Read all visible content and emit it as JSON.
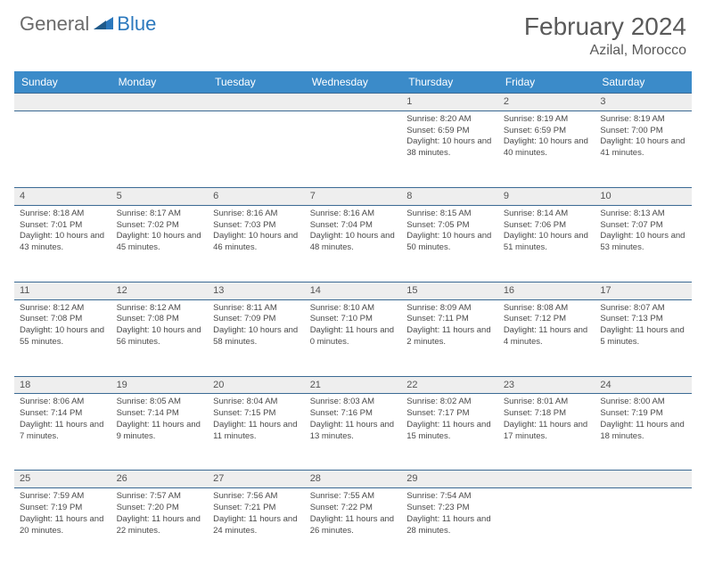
{
  "brand": {
    "part1": "General",
    "part2": "Blue"
  },
  "title": "February 2024",
  "location": "Azilal, Morocco",
  "header_bg": "#3b8bc9",
  "rule_color": "#3b6a94",
  "daynum_bg": "#eeeeee",
  "weekdays": [
    "Sunday",
    "Monday",
    "Tuesday",
    "Wednesday",
    "Thursday",
    "Friday",
    "Saturday"
  ],
  "weeks": [
    [
      null,
      null,
      null,
      null,
      {
        "n": "1",
        "sr": "8:20 AM",
        "ss": "6:59 PM",
        "dl": "10 hours and 38 minutes."
      },
      {
        "n": "2",
        "sr": "8:19 AM",
        "ss": "6:59 PM",
        "dl": "10 hours and 40 minutes."
      },
      {
        "n": "3",
        "sr": "8:19 AM",
        "ss": "7:00 PM",
        "dl": "10 hours and 41 minutes."
      }
    ],
    [
      {
        "n": "4",
        "sr": "8:18 AM",
        "ss": "7:01 PM",
        "dl": "10 hours and 43 minutes."
      },
      {
        "n": "5",
        "sr": "8:17 AM",
        "ss": "7:02 PM",
        "dl": "10 hours and 45 minutes."
      },
      {
        "n": "6",
        "sr": "8:16 AM",
        "ss": "7:03 PM",
        "dl": "10 hours and 46 minutes."
      },
      {
        "n": "7",
        "sr": "8:16 AM",
        "ss": "7:04 PM",
        "dl": "10 hours and 48 minutes."
      },
      {
        "n": "8",
        "sr": "8:15 AM",
        "ss": "7:05 PM",
        "dl": "10 hours and 50 minutes."
      },
      {
        "n": "9",
        "sr": "8:14 AM",
        "ss": "7:06 PM",
        "dl": "10 hours and 51 minutes."
      },
      {
        "n": "10",
        "sr": "8:13 AM",
        "ss": "7:07 PM",
        "dl": "10 hours and 53 minutes."
      }
    ],
    [
      {
        "n": "11",
        "sr": "8:12 AM",
        "ss": "7:08 PM",
        "dl": "10 hours and 55 minutes."
      },
      {
        "n": "12",
        "sr": "8:12 AM",
        "ss": "7:08 PM",
        "dl": "10 hours and 56 minutes."
      },
      {
        "n": "13",
        "sr": "8:11 AM",
        "ss": "7:09 PM",
        "dl": "10 hours and 58 minutes."
      },
      {
        "n": "14",
        "sr": "8:10 AM",
        "ss": "7:10 PM",
        "dl": "11 hours and 0 minutes."
      },
      {
        "n": "15",
        "sr": "8:09 AM",
        "ss": "7:11 PM",
        "dl": "11 hours and 2 minutes."
      },
      {
        "n": "16",
        "sr": "8:08 AM",
        "ss": "7:12 PM",
        "dl": "11 hours and 4 minutes."
      },
      {
        "n": "17",
        "sr": "8:07 AM",
        "ss": "7:13 PM",
        "dl": "11 hours and 5 minutes."
      }
    ],
    [
      {
        "n": "18",
        "sr": "8:06 AM",
        "ss": "7:14 PM",
        "dl": "11 hours and 7 minutes."
      },
      {
        "n": "19",
        "sr": "8:05 AM",
        "ss": "7:14 PM",
        "dl": "11 hours and 9 minutes."
      },
      {
        "n": "20",
        "sr": "8:04 AM",
        "ss": "7:15 PM",
        "dl": "11 hours and 11 minutes."
      },
      {
        "n": "21",
        "sr": "8:03 AM",
        "ss": "7:16 PM",
        "dl": "11 hours and 13 minutes."
      },
      {
        "n": "22",
        "sr": "8:02 AM",
        "ss": "7:17 PM",
        "dl": "11 hours and 15 minutes."
      },
      {
        "n": "23",
        "sr": "8:01 AM",
        "ss": "7:18 PM",
        "dl": "11 hours and 17 minutes."
      },
      {
        "n": "24",
        "sr": "8:00 AM",
        "ss": "7:19 PM",
        "dl": "11 hours and 18 minutes."
      }
    ],
    [
      {
        "n": "25",
        "sr": "7:59 AM",
        "ss": "7:19 PM",
        "dl": "11 hours and 20 minutes."
      },
      {
        "n": "26",
        "sr": "7:57 AM",
        "ss": "7:20 PM",
        "dl": "11 hours and 22 minutes."
      },
      {
        "n": "27",
        "sr": "7:56 AM",
        "ss": "7:21 PM",
        "dl": "11 hours and 24 minutes."
      },
      {
        "n": "28",
        "sr": "7:55 AM",
        "ss": "7:22 PM",
        "dl": "11 hours and 26 minutes."
      },
      {
        "n": "29",
        "sr": "7:54 AM",
        "ss": "7:23 PM",
        "dl": "11 hours and 28 minutes."
      },
      null,
      null
    ]
  ],
  "labels": {
    "sunrise": "Sunrise: ",
    "sunset": "Sunset: ",
    "daylight": "Daylight: "
  }
}
